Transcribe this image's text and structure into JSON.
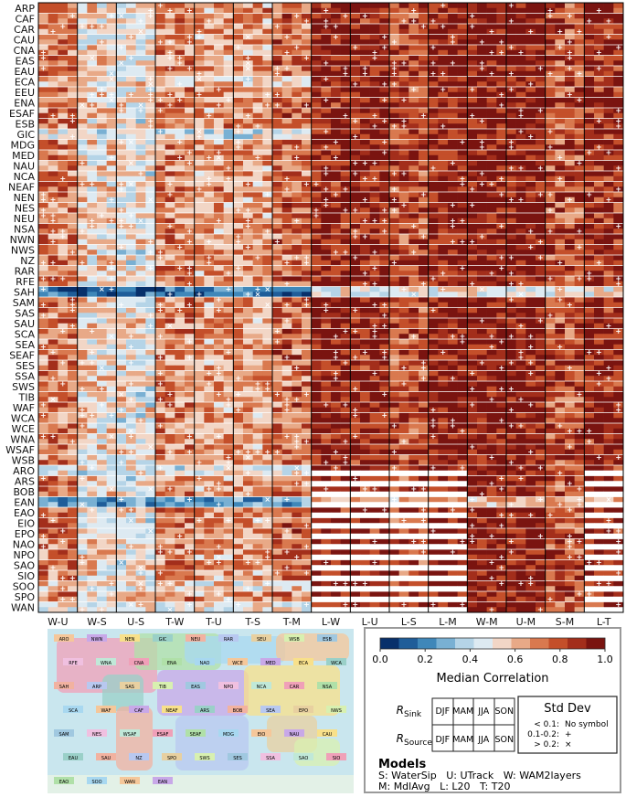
{
  "chart_data": {
    "type": "heatmap",
    "title": "",
    "row_labels_land": [
      "ARP",
      "CAF",
      "CAR",
      "CAU",
      "CNA",
      "EAS",
      "EAU",
      "ECA",
      "EEU",
      "ENA",
      "ESAF",
      "ESB",
      "GIC",
      "MDG",
      "MED",
      "NAU",
      "NCA",
      "NEAF",
      "NEN",
      "NES",
      "NEU",
      "NSA",
      "NWN",
      "NWS",
      "NZ",
      "RAR",
      "RFE",
      "SAH",
      "SAM",
      "SAS",
      "SAU",
      "SCA",
      "SEA",
      "SEAF",
      "SES",
      "SSA",
      "SWS",
      "TIB",
      "WAF",
      "WCA",
      "WCE",
      "WNA",
      "WSAF",
      "WSB"
    ],
    "row_labels_ocean": [
      "ARO",
      "ARS",
      "BOB",
      "EAN",
      "EAO",
      "EIO",
      "EPO",
      "NAO",
      "NPO",
      "SAO",
      "SIO",
      "SOO",
      "SPO",
      "WAN"
    ],
    "columns": [
      "W-U",
      "W-S",
      "U-S",
      "T-W",
      "T-U",
      "T-S",
      "T-M",
      "L-W",
      "L-U",
      "L-S",
      "L-M",
      "W-M",
      "U-M",
      "S-M",
      "L-T"
    ],
    "sub_cells": [
      "DJF",
      "MAM",
      "JJA",
      "SON"
    ],
    "sub_rows": [
      "R_Sink",
      "R_Source"
    ],
    "colorbar": {
      "label": "Median Correlation",
      "ticks": [
        "0.0",
        "0.2",
        "0.4",
        "0.6",
        "0.8",
        "1.0"
      ],
      "range": [
        0,
        1
      ],
      "colors": [
        "#08306b",
        "#1f5d99",
        "#3f87b9",
        "#79b0d3",
        "#b5d4e7",
        "#ddeaf2",
        "#f2d6c6",
        "#e8a987",
        "#d9794f",
        "#c44f2a",
        "#a32e1b",
        "#7a1410"
      ]
    },
    "note": "Each cell colored by median correlation; + marks std dev 0.1-0.2, x marks std dev > 0.2; white cells = no data."
  },
  "legend": {
    "colorbar_title": "Median Correlation",
    "r_sink": "R",
    "r_sink_sub": "Sink",
    "r_source": "R",
    "r_source_sub": "Source",
    "seasons": [
      "DJF",
      "MAM",
      "JJA",
      "SON"
    ],
    "stddev_title": "Std Dev",
    "stddev_rows": [
      {
        "range": "< 0.1:",
        "symbol": "No symbol"
      },
      {
        "range": "0.1-0.2:",
        "symbol": "+"
      },
      {
        "range": "> 0.2:",
        "symbol": "×"
      }
    ],
    "models_title": "Models",
    "models_line1": "S: WaterSip   U: UTrack   W: WAM2layers",
    "models_line2": "M: MdlAvg   L: L20   T: T20"
  },
  "map_labels": [
    "ARO",
    "NWN",
    "NEN",
    "GIC",
    "NEU",
    "RAR",
    "SEU",
    "WSB",
    "ESB",
    "RFE",
    "WNA",
    "CNA",
    "ENA",
    "NAO",
    "WCE",
    "MED",
    "ECA",
    "WCA",
    "SAH",
    "ARP",
    "SAS",
    "TIB",
    "EAS",
    "NPO",
    "NCA",
    "CAR",
    "NSA",
    "SCA",
    "WAF",
    "CAF",
    "NEAF",
    "ARS",
    "BOB",
    "SEA",
    "EPO",
    "NWS",
    "SAM",
    "NES",
    "WSAF",
    "ESAF",
    "SEAF",
    "MDG",
    "EIO",
    "NAU",
    "CAU",
    "EAU",
    "SAU",
    "NZ",
    "SPO",
    "SWS",
    "SES",
    "SSA",
    "SAO",
    "SIO",
    "EAO",
    "SOO",
    "WAN",
    "EAN"
  ]
}
